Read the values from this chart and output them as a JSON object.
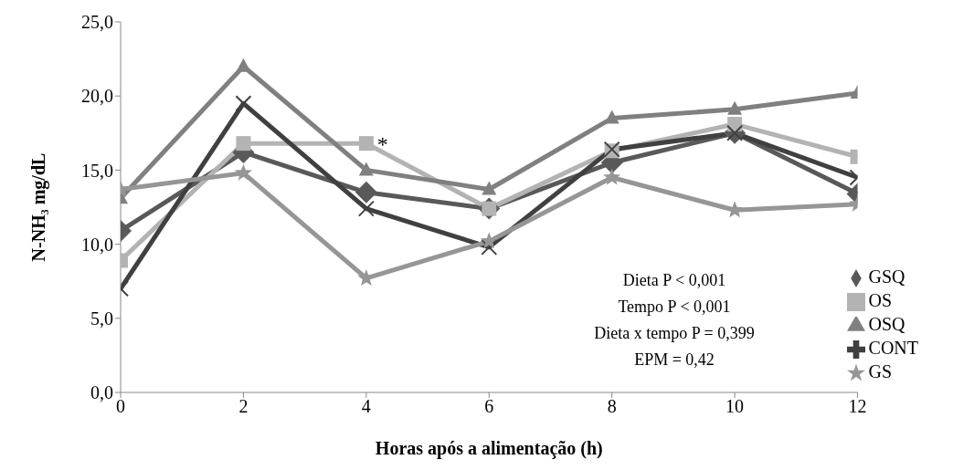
{
  "chart_data": {
    "type": "line",
    "xlabel": "Horas após a alimentação (h)",
    "ylabel": "N-NH₃ mg/dL",
    "x": [
      0,
      2,
      4,
      6,
      8,
      10,
      12
    ],
    "xlim": [
      0,
      12
    ],
    "xticks": [
      0,
      2,
      4,
      6,
      8,
      10,
      12
    ],
    "ylim": [
      0,
      25
    ],
    "yticks": [
      {
        "value": 0,
        "label": "0,0"
      },
      {
        "value": 5,
        "label": "5,0"
      },
      {
        "value": 10,
        "label": "10,0"
      },
      {
        "value": 15,
        "label": "15,0"
      },
      {
        "value": 20,
        "label": "20,0"
      },
      {
        "value": 25,
        "label": "25,0"
      }
    ],
    "grid": false,
    "legend": "bottom right",
    "line_style": "solid",
    "series": [
      {
        "name": "GSQ",
        "color": "#595959",
        "marker": "diamond",
        "values": [
          10.9,
          16.2,
          13.5,
          12.4,
          15.5,
          17.5,
          13.4
        ]
      },
      {
        "name": "OS",
        "color": "#b3b3b3",
        "marker": "square",
        "values": [
          8.9,
          16.8,
          16.8,
          12.4,
          16.3,
          18.1,
          15.9
        ]
      },
      {
        "name": "OSQ",
        "color": "#808080",
        "marker": "triangle",
        "values": [
          13.1,
          22.0,
          15.0,
          13.7,
          18.5,
          19.1,
          20.2
        ]
      },
      {
        "name": "CONT",
        "color": "#404040",
        "marker": "cross",
        "values": [
          7.0,
          19.5,
          12.4,
          9.8,
          16.4,
          17.5,
          14.5
        ]
      },
      {
        "name": "GS",
        "color": "#969696",
        "marker": "star",
        "values": [
          13.7,
          14.8,
          7.7,
          10.2,
          14.5,
          12.3,
          12.7
        ]
      }
    ],
    "annotations": [
      {
        "text": "*",
        "x": 4,
        "y": 16.8
      },
      "Dieta P < 0,001",
      "Tempo P < 0,001",
      "Dieta x tempo P = 0,399",
      "EPM = 0,42"
    ]
  }
}
